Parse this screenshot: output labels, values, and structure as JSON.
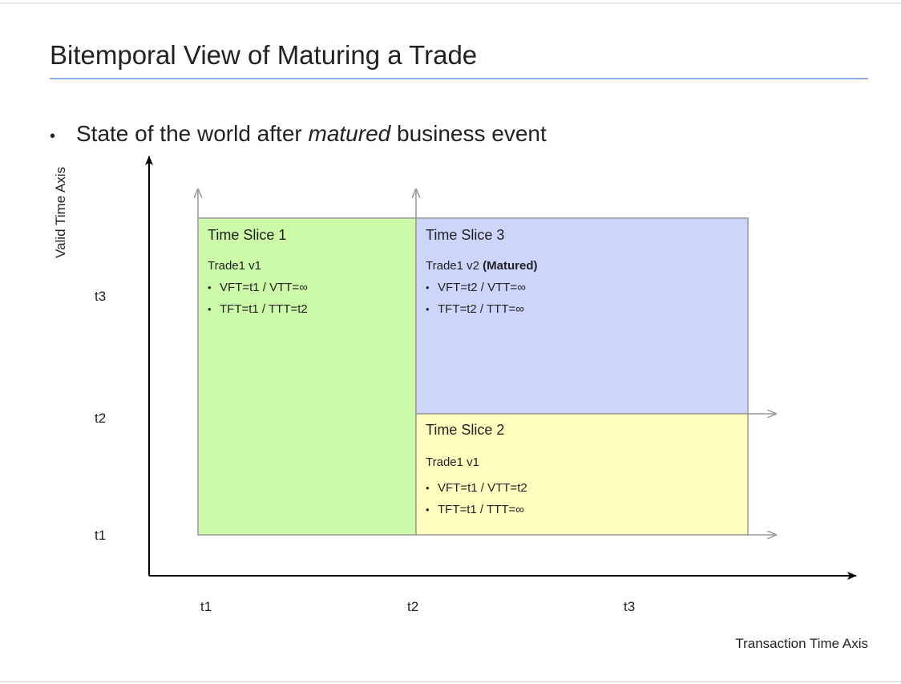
{
  "title": "Bitemporal View of Maturing a Trade",
  "bullet": {
    "before": "State of the world after ",
    "emphasis": "matured",
    "after": " business event"
  },
  "y_axis": {
    "label": "Valid Time Axis",
    "ticks": [
      "t1",
      "t2",
      "t3"
    ]
  },
  "x_axis": {
    "label": "Transaction Time Axis",
    "ticks": [
      "t1",
      "t2",
      "t3"
    ]
  },
  "slices": [
    {
      "title": "Time Slice 1",
      "trade": "Trade1 v1",
      "items": [
        "VFT=t1 / VTT=∞",
        "TFT=t1 / TTT=t2"
      ]
    },
    {
      "title": "Time Slice 2",
      "trade": "Trade1 v1",
      "items": [
        "VFT=t1 / VTT=t2",
        "TFT=t1 / TTT=∞"
      ]
    },
    {
      "title": "Time Slice 3",
      "trade": "Trade1 v2",
      "trade_note": "(Matured)",
      "items": [
        "VFT=t2 / VTT=∞",
        "TFT=t2 / TTT=∞"
      ]
    }
  ]
}
